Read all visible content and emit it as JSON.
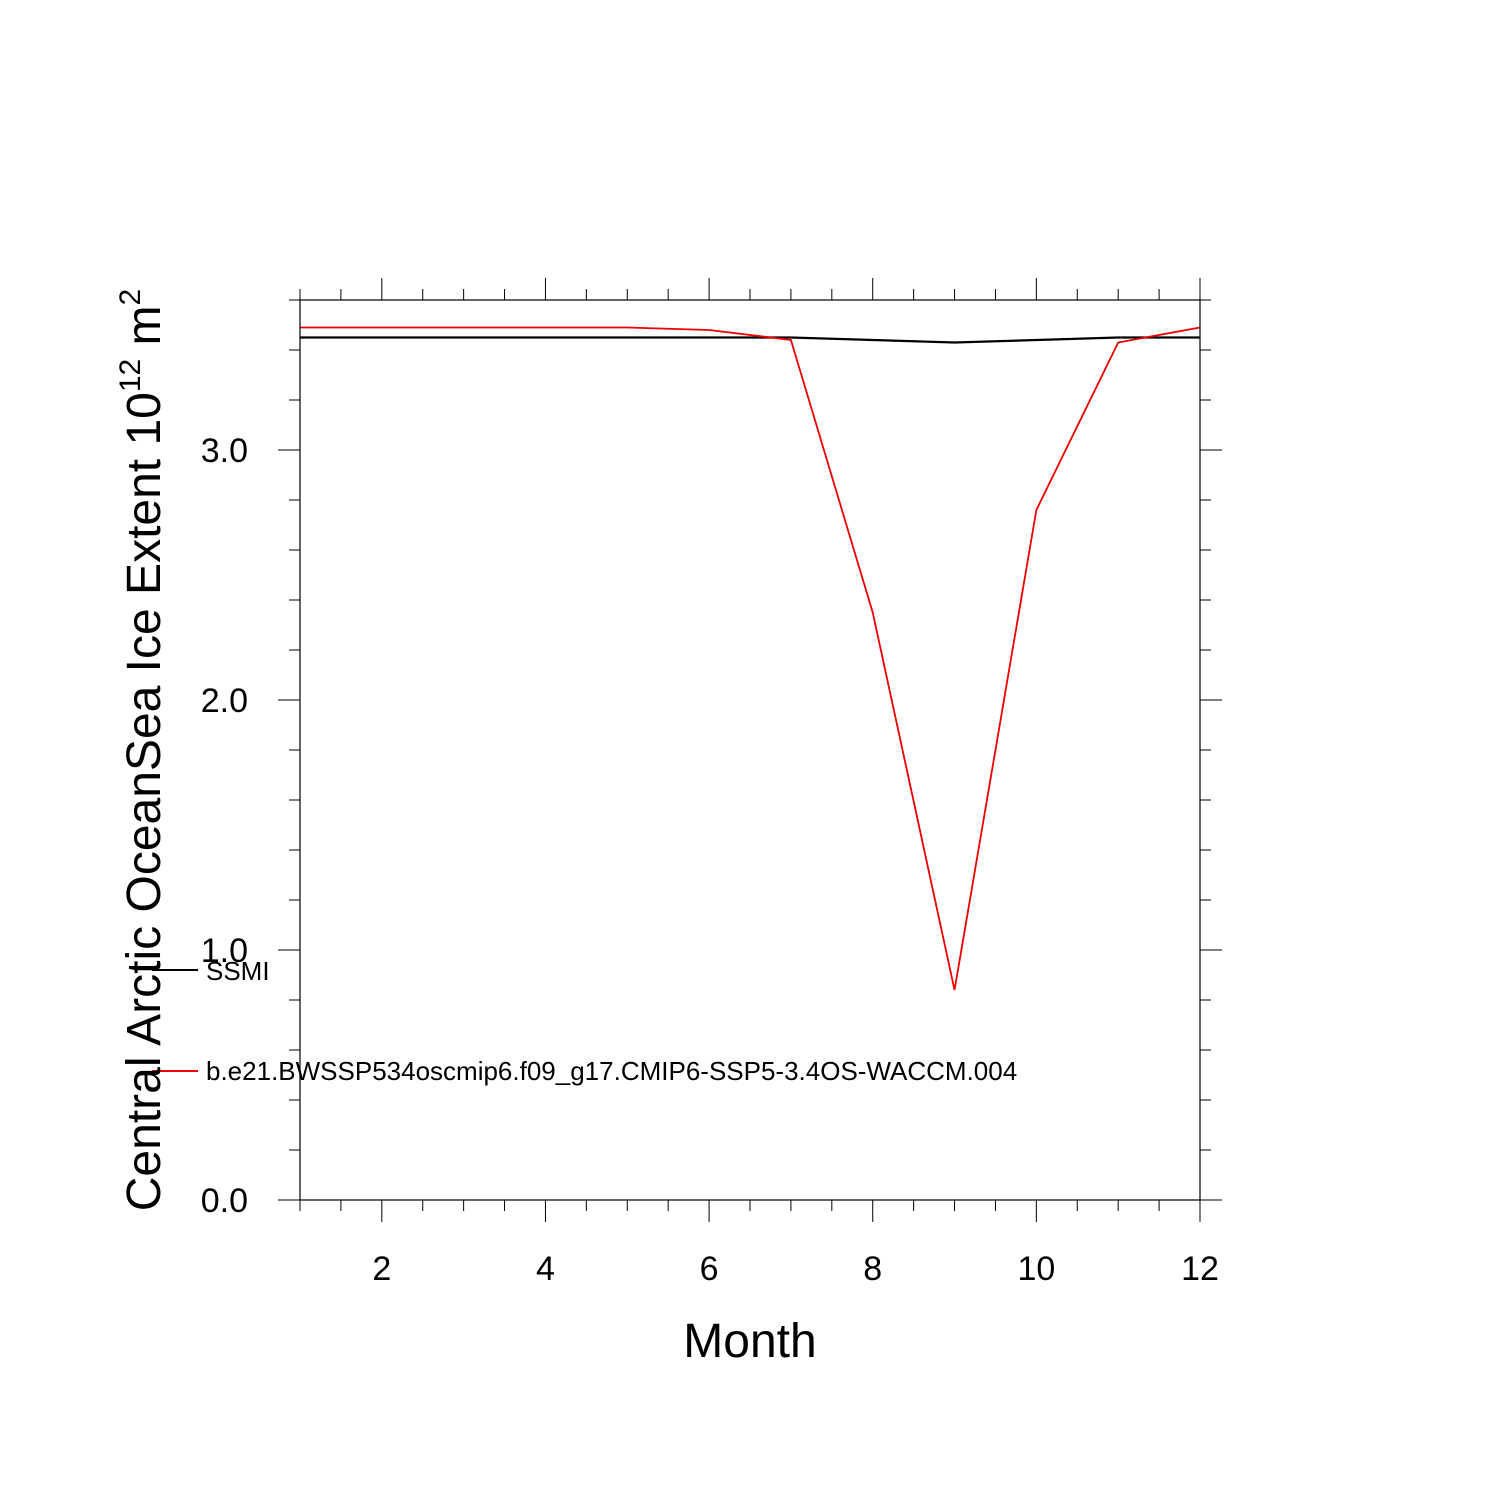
{
  "chart_data": {
    "type": "line",
    "title": "",
    "xlabel": "Month",
    "ylabel_main": "Central Arctic OceanSea Ice Extent 10",
    "ylabel_sup": "12",
    "ylabel_unit": " m",
    "ylabel_unit_sup": "2",
    "xlim": [
      1,
      12
    ],
    "ylim": [
      0,
      3.6
    ],
    "x_ticks": [
      2,
      4,
      6,
      8,
      10,
      12
    ],
    "x_tick_labels": [
      "2",
      "4",
      "6",
      "8",
      "10",
      "12"
    ],
    "y_ticks": [
      0,
      1,
      2,
      3
    ],
    "y_tick_labels": [
      "0.0",
      "1.0",
      "2.0",
      "3.0"
    ],
    "grid": false,
    "legend_position": "inside-left",
    "x": [
      1,
      2,
      3,
      4,
      5,
      6,
      7,
      8,
      9,
      10,
      11,
      12
    ],
    "series": [
      {
        "name": "SSMI",
        "color": "#000000",
        "values": [
          3.45,
          3.45,
          3.45,
          3.45,
          3.45,
          3.45,
          3.45,
          3.44,
          3.43,
          3.44,
          3.45,
          3.45
        ]
      },
      {
        "name": "b.e21.BWSSP534oscmip6.f09_g17.CMIP6-SSP5-3.4OS-WACCM.004",
        "color": "#ee0000",
        "values": [
          3.49,
          3.49,
          3.49,
          3.49,
          3.49,
          3.48,
          3.44,
          2.35,
          0.84,
          2.76,
          3.43,
          3.49
        ]
      }
    ]
  }
}
